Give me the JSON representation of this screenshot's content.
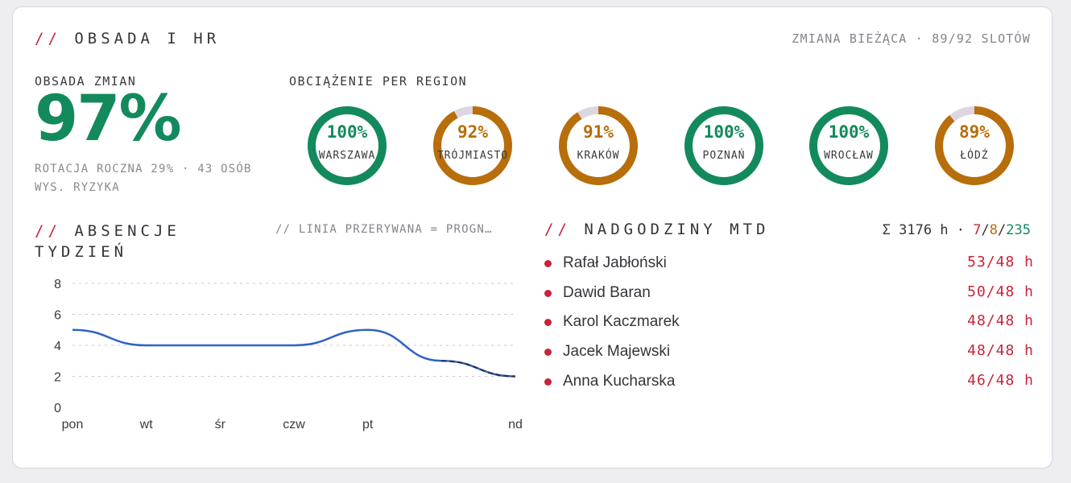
{
  "header": {
    "slashes": "//",
    "title": "OBSADA I HR",
    "shift_info": "ZMIANA BIEŻĄCA · 89/92 SLOTÓW"
  },
  "staffing": {
    "label": "OBSADA ZMIAN",
    "value": "97%",
    "meta_line1": "ROTACJA ROCZNA 29% · 43 OSÓB",
    "meta_line2": "WYS. RYZYKA"
  },
  "regions": {
    "label": "OBCIĄŻENIE PER REGION",
    "items": [
      {
        "name": "WARSZAWA",
        "pct_label": "100%",
        "value": 100,
        "color": "#138a5c"
      },
      {
        "name": "TRÓJMIASTO",
        "pct_label": "92%",
        "value": 92,
        "color": "#b86e0a"
      },
      {
        "name": "KRAKÓW",
        "pct_label": "91%",
        "value": 91,
        "color": "#b86e0a"
      },
      {
        "name": "POZNAŃ",
        "pct_label": "100%",
        "value": 100,
        "color": "#138a5c"
      },
      {
        "name": "WROCŁAW",
        "pct_label": "100%",
        "value": 100,
        "color": "#138a5c"
      },
      {
        "name": "ŁÓDŹ",
        "pct_label": "89%",
        "value": 89,
        "color": "#b86e0a"
      }
    ],
    "track_color": "#ddd6e2"
  },
  "absences": {
    "slashes": "//",
    "title": "ABSENCJE TYDZIEŃ",
    "note": "// LINIA PRZERYWANA = PROGN…"
  },
  "chart_data": {
    "type": "line",
    "categories": [
      "pon",
      "wt",
      "śr",
      "czw",
      "pt",
      "",
      "nd"
    ],
    "series": [
      {
        "values": [
          5,
          4,
          4,
          4,
          5,
          3,
          2
        ],
        "color": "#2f62c3"
      },
      {
        "values": [
          null,
          null,
          null,
          null,
          null,
          3,
          2
        ],
        "color": "#2a3042",
        "dashed": true
      }
    ],
    "y_ticks": [
      0,
      2,
      4,
      6,
      8
    ],
    "ylim": [
      0,
      8
    ],
    "grid": true
  },
  "overtime": {
    "slashes": "//",
    "title": "NADGODZINY MTD",
    "summary_prefix": "Σ 3176 h · ",
    "summary_red": "7",
    "summary_sep1": "/",
    "summary_orange": "8",
    "summary_sep2": "/",
    "summary_green": "235",
    "people": [
      {
        "name": "Rafał Jabłoński",
        "value": "53/48 h"
      },
      {
        "name": "Dawid Baran",
        "value": "50/48 h"
      },
      {
        "name": "Karol Kaczmarek",
        "value": "48/48 h"
      },
      {
        "name": "Jacek Majewski",
        "value": "48/48 h"
      },
      {
        "name": "Anna Kucharska",
        "value": "46/48 h"
      }
    ]
  }
}
